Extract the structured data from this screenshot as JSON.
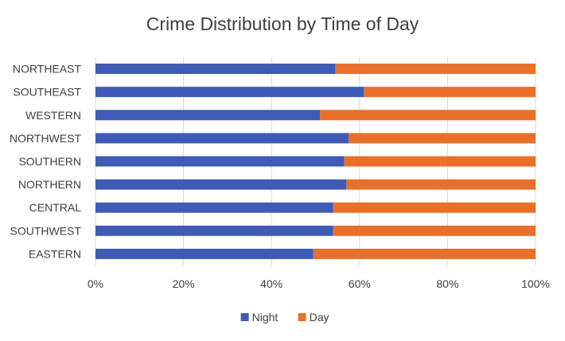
{
  "chart_data": {
    "type": "bar",
    "orientation": "horizontal",
    "stacked": "percent",
    "title": "Crime Distribution by Time of Day",
    "xlabel": "",
    "ylabel": "",
    "categories": [
      "NORTHEAST",
      "SOUTHEAST",
      "WESTERN",
      "NORTHWEST",
      "SOUTHERN",
      "NORTHERN",
      "CENTRAL",
      "SOUTHWEST",
      "EASTERN"
    ],
    "series": [
      {
        "name": "Night",
        "color": "#3F5BB5",
        "values": [
          54.5,
          61,
          51,
          57.5,
          56.5,
          57,
          54,
          54,
          49.5
        ]
      },
      {
        "name": "Day",
        "color": "#E8702A",
        "values": [
          45.5,
          39,
          49,
          42.5,
          43.5,
          43,
          46,
          46,
          50.5
        ]
      }
    ],
    "xlim": [
      0,
      100
    ],
    "xticks": [
      "0%",
      "20%",
      "40%",
      "60%",
      "80%",
      "100%"
    ],
    "grid": "vertical",
    "legend_position": "bottom"
  },
  "colors": {
    "gridline": "#D9D9D9",
    "text": "#404040",
    "title": "#404040"
  }
}
